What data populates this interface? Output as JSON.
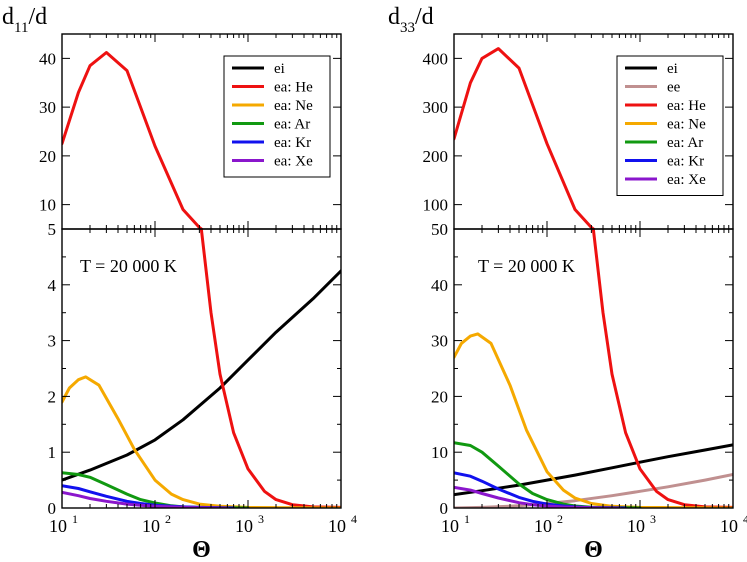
{
  "chart_data": [
    {
      "panel": "left",
      "type": "line",
      "ylabel_main": "d",
      "ylabel_sub": "11",
      "ylabel_tail": "/d",
      "xlabel": "Θ",
      "x_scale": "log",
      "xlim": [
        10,
        10000
      ],
      "x_ticks": [
        {
          "base": "10",
          "exp": "1",
          "value": 10
        },
        {
          "base": "10",
          "exp": "2",
          "value": 100
        },
        {
          "base": "10",
          "exp": "3",
          "value": 1000
        },
        {
          "base": "10",
          "exp": "4",
          "value": 10000
        }
      ],
      "upper": {
        "ylim": [
          5,
          45
        ],
        "yticks": [
          "10",
          "20",
          "30",
          "40"
        ],
        "ytick_values": [
          10,
          20,
          30,
          40
        ]
      },
      "lower": {
        "ylim": [
          0,
          5
        ],
        "yticks": [
          "0",
          "1",
          "2",
          "3",
          "4",
          "5"
        ],
        "ytick_values": [
          0,
          1,
          2,
          3,
          4,
          5
        ]
      },
      "annotation": "T = 20 000 K",
      "legend": [
        "ei",
        "ea: He",
        "ea: Ne",
        "ea: Ar",
        "ea: Kr",
        "ea: Xe"
      ],
      "series": [
        {
          "name": "ei",
          "color": "#000000",
          "x": [
            10,
            20,
            50,
            100,
            200,
            500,
            1000,
            2000,
            5000,
            10000
          ],
          "y": [
            0.5,
            0.68,
            0.95,
            1.22,
            1.58,
            2.15,
            2.65,
            3.15,
            3.75,
            4.25
          ]
        },
        {
          "name": "ea: He",
          "color": "#ee1111",
          "x": [
            10,
            15,
            20,
            30,
            50,
            100,
            200,
            300,
            400,
            500,
            700,
            1000,
            1500,
            2000,
            3000,
            5000,
            10000
          ],
          "y": [
            22.5,
            33,
            38.5,
            41.2,
            37.5,
            22,
            9,
            5.3,
            3.5,
            2.4,
            1.35,
            0.7,
            0.3,
            0.15,
            0.06,
            0.02,
            0.01
          ]
        },
        {
          "name": "ea: Ne",
          "color": "#f5a900",
          "x": [
            10,
            12,
            15,
            18,
            25,
            40,
            60,
            100,
            150,
            200,
            300,
            500,
            1000,
            10000
          ],
          "y": [
            1.9,
            2.15,
            2.3,
            2.35,
            2.2,
            1.6,
            1.05,
            0.5,
            0.25,
            0.15,
            0.07,
            0.03,
            0.01,
            0.0
          ]
        },
        {
          "name": "ea: Ar",
          "color": "#119911",
          "x": [
            10,
            15,
            20,
            30,
            50,
            70,
            100,
            150,
            200,
            300,
            1000
          ],
          "y": [
            0.63,
            0.6,
            0.55,
            0.42,
            0.25,
            0.15,
            0.09,
            0.04,
            0.02,
            0.01,
            0.0
          ]
        },
        {
          "name": "ea: Kr",
          "color": "#1111ee",
          "x": [
            10,
            15,
            20,
            30,
            50,
            70,
            100,
            150,
            200,
            300,
            700
          ],
          "y": [
            0.4,
            0.35,
            0.29,
            0.21,
            0.12,
            0.08,
            0.05,
            0.03,
            0.02,
            0.01,
            0.0
          ]
        },
        {
          "name": "ea: Xe",
          "color": "#8a16cc",
          "x": [
            10,
            15,
            20,
            30,
            50,
            70,
            100,
            150,
            200,
            300,
            600
          ],
          "y": [
            0.28,
            0.22,
            0.17,
            0.12,
            0.07,
            0.05,
            0.03,
            0.02,
            0.01,
            0.005,
            0.0
          ]
        }
      ]
    },
    {
      "panel": "right",
      "type": "line",
      "ylabel_main": "d",
      "ylabel_sub": "33",
      "ylabel_tail": "/d",
      "xlabel": "Θ",
      "x_scale": "log",
      "xlim": [
        10,
        10000
      ],
      "x_ticks": [
        {
          "base": "10",
          "exp": "1",
          "value": 10
        },
        {
          "base": "10",
          "exp": "2",
          "value": 100
        },
        {
          "base": "10",
          "exp": "3",
          "value": 1000
        },
        {
          "base": "10",
          "exp": "4",
          "value": 10000
        }
      ],
      "upper": {
        "ylim": [
          50,
          450
        ],
        "yticks": [
          "100",
          "200",
          "300",
          "400"
        ],
        "ytick_values": [
          100,
          200,
          300,
          400
        ]
      },
      "lower": {
        "ylim": [
          0,
          50
        ],
        "yticks": [
          "0",
          "10",
          "20",
          "30",
          "40",
          "50"
        ],
        "ytick_values": [
          0,
          10,
          20,
          30,
          40,
          50
        ]
      },
      "annotation": "T = 20 000 K",
      "legend": [
        "ei",
        "ee",
        "ea: He",
        "ea: Ne",
        "ea: Ar",
        "ea: Kr",
        "ea: Xe"
      ],
      "series": [
        {
          "name": "ei",
          "color": "#000000",
          "x": [
            10,
            20,
            50,
            100,
            200,
            500,
            1000,
            2000,
            5000,
            10000
          ],
          "y": [
            2.4,
            3.1,
            4.1,
            5.0,
            5.9,
            7.2,
            8.2,
            9.2,
            10.4,
            11.3
          ]
        },
        {
          "name": "ee",
          "color": "#c09090",
          "x": [
            10,
            20,
            50,
            100,
            200,
            500,
            1000,
            2000,
            5000,
            10000
          ],
          "y": [
            0.0,
            0.1,
            0.4,
            0.8,
            1.3,
            2.2,
            3.0,
            3.8,
            5.0,
            6.0
          ]
        },
        {
          "name": "ea: He",
          "color": "#ee1111",
          "x": [
            10,
            15,
            20,
            30,
            50,
            100,
            200,
            300,
            400,
            500,
            700,
            1000,
            1500,
            2000,
            3000,
            5000,
            10000
          ],
          "y": [
            235,
            350,
            400,
            420,
            380,
            225,
            90,
            53,
            35,
            24,
            13.5,
            7,
            3,
            1.5,
            0.6,
            0.2,
            0.1
          ]
        },
        {
          "name": "ea: Ne",
          "color": "#f5a900",
          "x": [
            10,
            12,
            15,
            18,
            25,
            40,
            60,
            100,
            150,
            200,
            300,
            500,
            1000,
            10000
          ],
          "y": [
            27,
            29.5,
            30.8,
            31.2,
            29.5,
            22,
            14,
            6.5,
            3.2,
            1.8,
            0.8,
            0.3,
            0.1,
            0.0
          ]
        },
        {
          "name": "ea: Ar",
          "color": "#119911",
          "x": [
            10,
            15,
            20,
            30,
            50,
            70,
            100,
            150,
            200,
            300,
            1000
          ],
          "y": [
            11.7,
            11.2,
            10,
            7.5,
            4.3,
            2.6,
            1.5,
            0.7,
            0.35,
            0.15,
            0.0
          ]
        },
        {
          "name": "ea: Kr",
          "color": "#1111ee",
          "x": [
            10,
            15,
            20,
            30,
            50,
            70,
            100,
            150,
            200,
            300,
            700
          ],
          "y": [
            6.3,
            5.7,
            4.8,
            3.4,
            1.9,
            1.2,
            0.7,
            0.35,
            0.2,
            0.08,
            0.0
          ]
        },
        {
          "name": "ea: Xe",
          "color": "#8a16cc",
          "x": [
            10,
            15,
            20,
            30,
            50,
            70,
            100,
            150,
            200,
            300,
            600
          ],
          "y": [
            3.7,
            3.2,
            2.6,
            1.8,
            0.95,
            0.6,
            0.35,
            0.18,
            0.1,
            0.04,
            0.0
          ]
        }
      ]
    }
  ]
}
